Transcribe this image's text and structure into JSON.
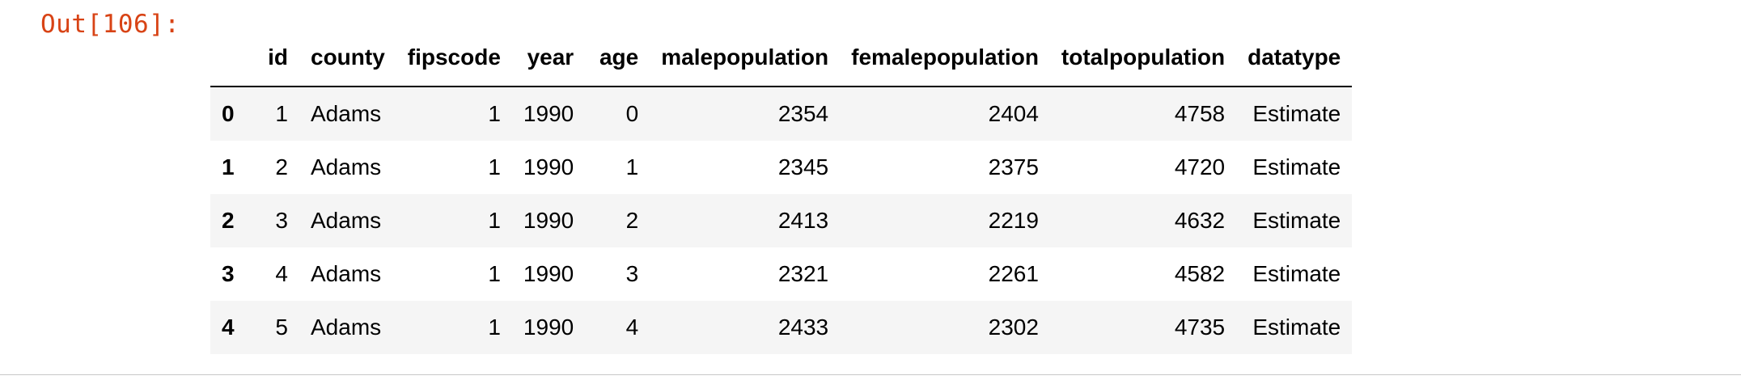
{
  "prompt": "Out[106]:",
  "table": {
    "index_header": "",
    "columns": [
      "id",
      "county",
      "fipscode",
      "year",
      "age",
      "malepopulation",
      "femalepopulation",
      "totalpopulation",
      "datatype"
    ],
    "rows": [
      {
        "index": "0",
        "cells": [
          "1",
          "Adams",
          "1",
          "1990",
          "0",
          "2354",
          "2404",
          "4758",
          "Estimate"
        ]
      },
      {
        "index": "1",
        "cells": [
          "2",
          "Adams",
          "1",
          "1990",
          "1",
          "2345",
          "2375",
          "4720",
          "Estimate"
        ]
      },
      {
        "index": "2",
        "cells": [
          "3",
          "Adams",
          "1",
          "1990",
          "2",
          "2413",
          "2219",
          "4632",
          "Estimate"
        ]
      },
      {
        "index": "3",
        "cells": [
          "4",
          "Adams",
          "1",
          "1990",
          "3",
          "2321",
          "2261",
          "4582",
          "Estimate"
        ]
      },
      {
        "index": "4",
        "cells": [
          "5",
          "Adams",
          "1",
          "1990",
          "4",
          "2433",
          "2302",
          "4735",
          "Estimate"
        ]
      }
    ]
  },
  "colors": {
    "prompt": "#d84315",
    "stripe": "#f5f5f5",
    "header_rule": "#000000"
  }
}
